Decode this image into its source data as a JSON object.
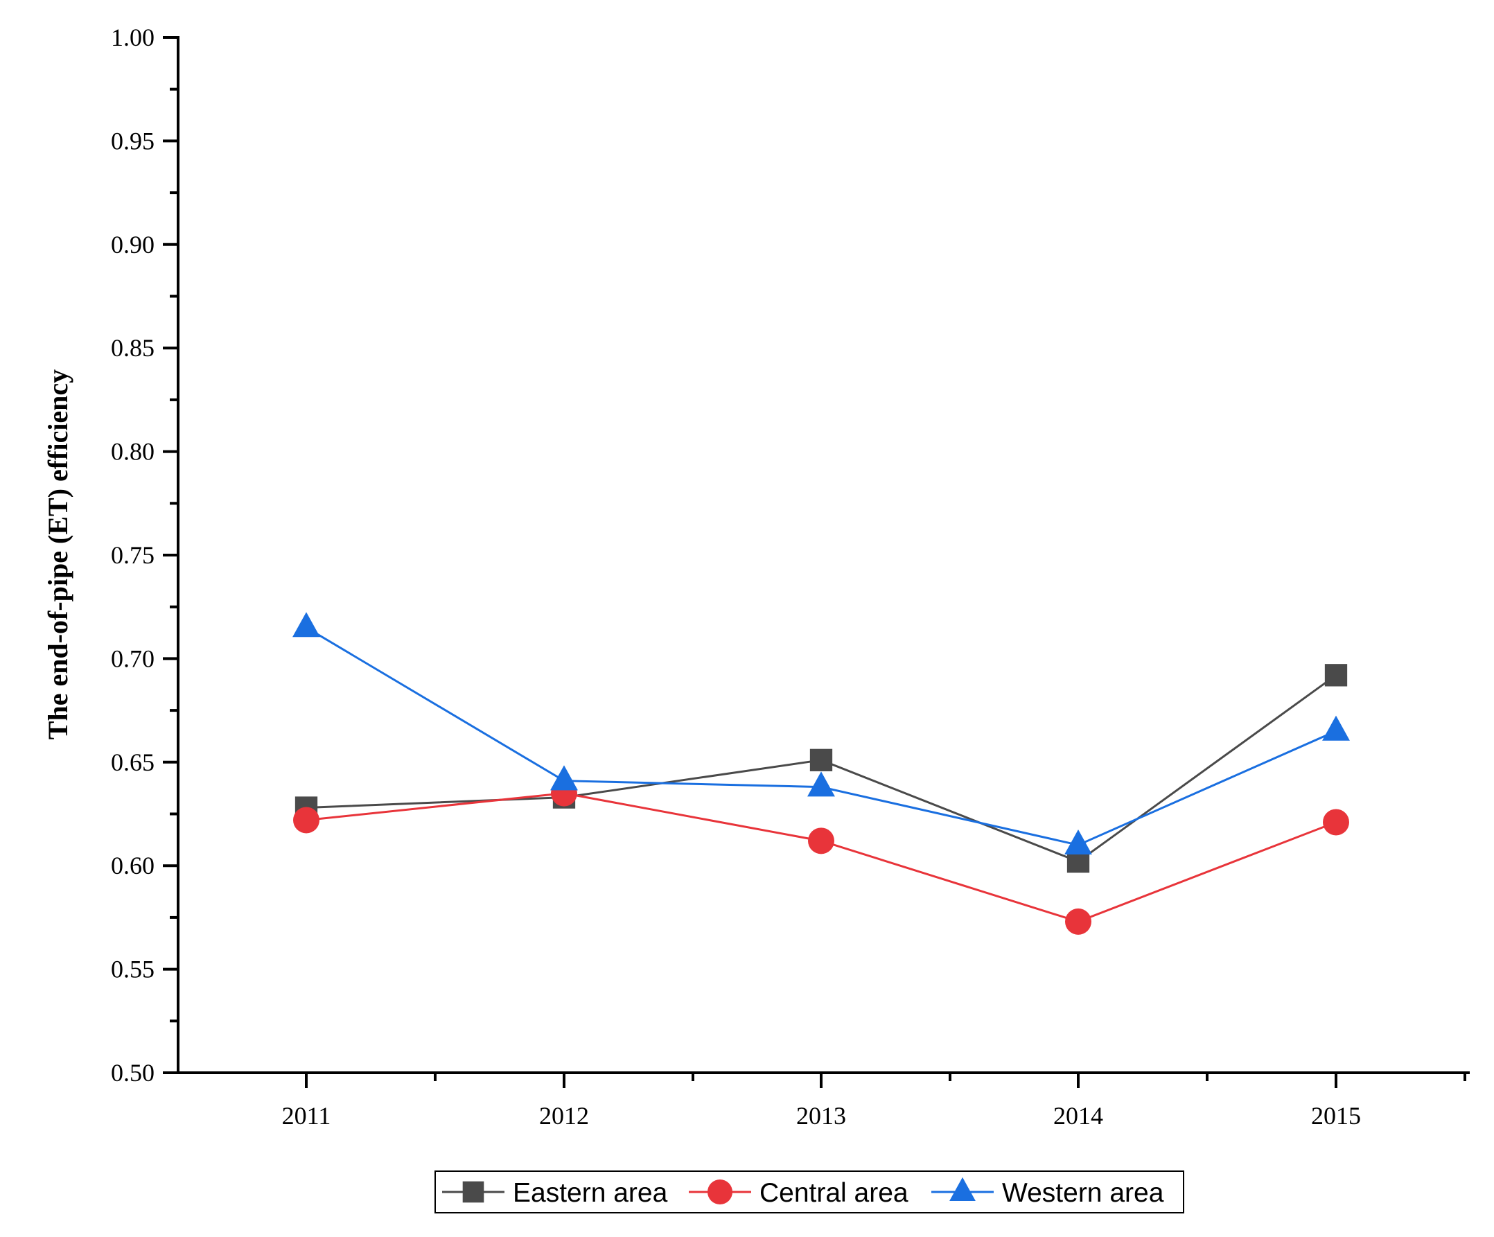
{
  "chart_data": {
    "type": "line",
    "title": "",
    "xlabel": "",
    "ylabel": "The end-of-pipe (ET) efficiency",
    "categories": [
      "2011",
      "2012",
      "2013",
      "2014",
      "2015"
    ],
    "ylim": [
      0.5,
      1.0
    ],
    "yticks": [
      "0.50",
      "0.55",
      "0.60",
      "0.65",
      "0.70",
      "0.75",
      "0.80",
      "0.85",
      "0.90",
      "0.95",
      "1.00"
    ],
    "grid": false,
    "legend_position": "bottom",
    "series": [
      {
        "name": "Eastern area",
        "marker": "square",
        "color": "#4a4a4a",
        "values": [
          0.628,
          0.633,
          0.651,
          0.602,
          0.692
        ]
      },
      {
        "name": "Central area",
        "marker": "circle",
        "color": "#e8343a",
        "values": [
          0.622,
          0.635,
          0.612,
          0.573,
          0.621
        ]
      },
      {
        "name": "Western area",
        "marker": "triangle",
        "color": "#1a6fe0",
        "values": [
          0.715,
          0.641,
          0.638,
          0.61,
          0.665
        ]
      }
    ]
  }
}
